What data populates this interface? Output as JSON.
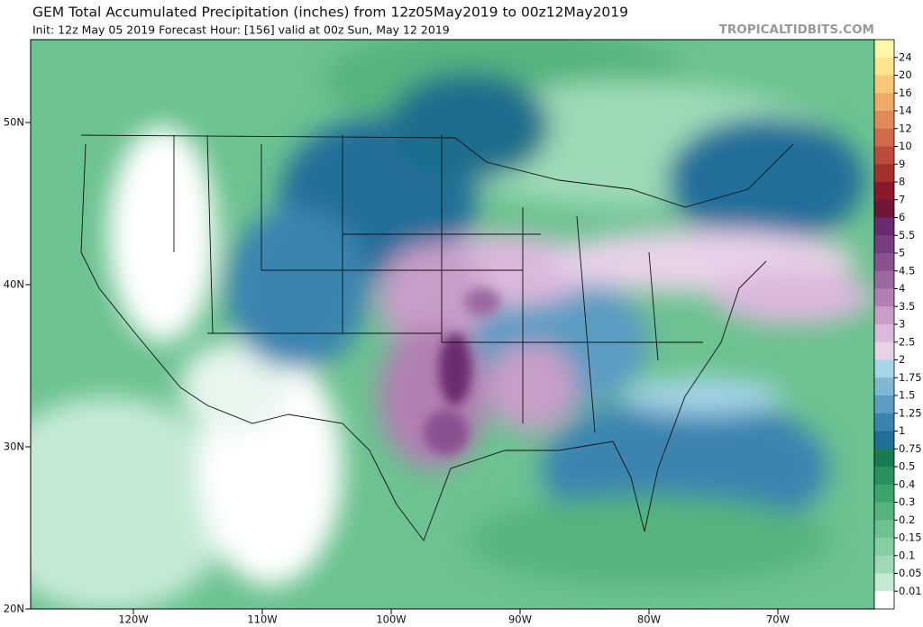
{
  "title": "GEM Total Accumulated Precipitation (inches) from 12z05May2019 to 00z12May2019",
  "subtitle": "Init: 12z May 05 2019   Forecast Hour: [156]   valid at 00z Sun, May 12 2019",
  "watermark": "TROPICALTIDBITS.COM",
  "latitude_labels": [
    "50N",
    "40N",
    "30N",
    "20N"
  ],
  "longitude_labels": [
    "120W",
    "110W",
    "100W",
    "90W",
    "80W",
    "70W"
  ],
  "colorbar": {
    "levels": [
      24,
      20,
      16,
      14,
      12,
      10,
      9,
      8,
      7,
      6,
      5.5,
      5,
      4.5,
      4,
      3.5,
      3,
      2.5,
      2,
      1.75,
      1.5,
      1.25,
      1,
      0.75,
      0.5,
      0.4,
      0.3,
      0.2,
      0.15,
      0.1,
      0.05,
      0.01
    ],
    "colors": [
      "#fff8a8",
      "#fbe48c",
      "#f6c878",
      "#eeaa66",
      "#e08a58",
      "#d06a48",
      "#bd4a3a",
      "#a4302e",
      "#8a1a2a",
      "#701538",
      "#6a2a70",
      "#783c80",
      "#8a5090",
      "#9c68a0",
      "#b27fb2",
      "#c89ec8",
      "#dcb8dc",
      "#e8d2e8",
      "#a6d4e8",
      "#80b8d4",
      "#5a9cc2",
      "#3a84b0",
      "#206e9a",
      "#1a7a52",
      "#2a9060",
      "#3ea46e",
      "#54b47e",
      "#6cc290",
      "#84cea2",
      "#9edab6",
      "#c4ead6",
      "#ffffff"
    ]
  }
}
